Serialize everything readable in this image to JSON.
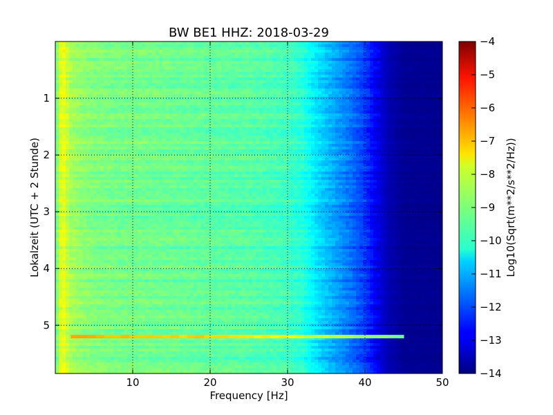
{
  "chart_data": {
    "type": "heatmap",
    "title": "BW BE1 HHZ: 2018-03-29",
    "xlabel": "Frequency [Hz]",
    "ylabel": "Lokalzeit (UTC + 2 Stunde)",
    "xlim": [
      0,
      50
    ],
    "ylim": [
      5.85,
      0
    ],
    "x_ticks": [
      10,
      20,
      30,
      40,
      50
    ],
    "y_ticks": [
      1,
      2,
      3,
      4,
      5
    ],
    "grid": true,
    "colorbar": {
      "label": "Log10(Sqrt(m**2/s**2/Hz))",
      "range": [
        -14,
        -4
      ],
      "ticks": [
        -4,
        -5,
        -6,
        -7,
        -8,
        -9,
        -10,
        -11,
        -12,
        -13,
        -14
      ],
      "colormap": "jet"
    },
    "frequency_profile": {
      "frequency_hz": [
        0,
        0.5,
        1,
        1.5,
        2,
        3,
        5,
        8,
        10,
        15,
        20,
        25,
        30,
        32,
        34,
        36,
        38,
        40,
        41,
        42,
        43,
        45,
        50
      ],
      "log_amplitude": [
        -9.6,
        -8.3,
        -7.9,
        -8.3,
        -8.6,
        -8.8,
        -9.0,
        -9.1,
        -9.1,
        -9.2,
        -9.3,
        -9.4,
        -9.6,
        -9.9,
        -10.6,
        -11.1,
        -11.6,
        -12.2,
        -12.7,
        -13.1,
        -13.5,
        -13.8,
        -13.85
      ]
    },
    "event": {
      "time": 5.2,
      "log_amplitude": -7.3,
      "frequency_extent_hz": [
        2,
        45
      ]
    }
  }
}
